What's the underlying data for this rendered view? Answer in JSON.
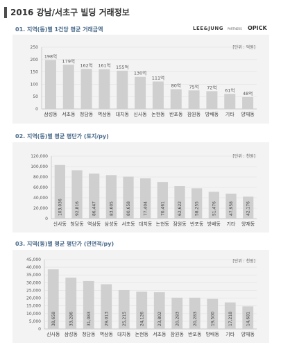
{
  "page": {
    "title": "2016 강남/서초구 빌딩 거래정보"
  },
  "branding": {
    "partner": "LEE&JUNG",
    "partner_sub": "PARTNERS",
    "logo": "OPICK"
  },
  "colors": {
    "bar": "#cfcfcf",
    "bar_dark": "#c4c4c4",
    "accent": "#4a6b8a",
    "panel": "#f3f3f3"
  },
  "chart_data": [
    {
      "type": "bar",
      "title": "01. 지역(동)별 1건당 평균 거래금액",
      "unit": "[단위 : 억원]",
      "categories": [
        "삼성동",
        "서초동",
        "청담동",
        "역삼동",
        "대치동",
        "신사동",
        "논현동",
        "반포동",
        "잠원동",
        "방배동",
        "기타",
        "양재동"
      ],
      "values": [
        198,
        179,
        162,
        161,
        155,
        130,
        111,
        80,
        75,
        72,
        61,
        48
      ],
      "value_labels": [
        "198억",
        "179억",
        "162억",
        "161억",
        "155억",
        "130억",
        "111억",
        "80억",
        "75억",
        "72억",
        "61억",
        "48억"
      ],
      "ylim": [
        0,
        250
      ],
      "yticks": [
        "0",
        "50",
        "100",
        "150",
        "200",
        "250"
      ]
    },
    {
      "type": "bar",
      "title": "02. 지역(동)별 평균 평단가 (토지/py)",
      "unit": "[단위 : 천원]",
      "categories": [
        "신사동",
        "청담동",
        "역삼동",
        "삼성동",
        "서초동",
        "대치동",
        "논현동",
        "잠원동",
        "반포동",
        "방배동",
        "기타",
        "양재동"
      ],
      "values": [
        103036,
        92816,
        86447,
        83605,
        80658,
        77404,
        70461,
        62622,
        58255,
        51476,
        47958,
        42176
      ],
      "value_labels": [
        "103,036",
        "92,816",
        "86,447",
        "83,605",
        "80,658",
        "77,404",
        "70,461",
        "62,622",
        "58,255",
        "51,476",
        "47,958",
        "42,176"
      ],
      "ylim": [
        0,
        120000
      ],
      "yticks": [
        "0",
        "20,000",
        "40,000",
        "60,000",
        "80,000",
        "100,000",
        "120,000"
      ]
    },
    {
      "type": "bar",
      "title": "03. 지역(동)별 평균 평단가 (연면적/py)",
      "unit": "[단위 : 천원]",
      "categories": [
        "신사동",
        "삼성동",
        "청담동",
        "역삼동",
        "대치동",
        "논현동",
        "서초동",
        "잠원동",
        "반포동",
        "방배동",
        "기타",
        "양재동"
      ],
      "values": [
        38658,
        33286,
        31083,
        29013,
        25215,
        24126,
        23802,
        20283,
        20283,
        19500,
        17218,
        14681
      ],
      "value_labels": [
        "38,658",
        "33,286",
        "31,083",
        "29,013",
        "25,215",
        "24,126",
        "23,802",
        "20,283",
        "20,283",
        "19,500",
        "17,218",
        "14,681"
      ],
      "ylim": [
        0,
        45000
      ],
      "yticks": [
        "0",
        "5,000",
        "10,000",
        "15,000",
        "20,000",
        "25,000",
        "30,000",
        "35,000",
        "40,000",
        "45,000"
      ]
    }
  ]
}
